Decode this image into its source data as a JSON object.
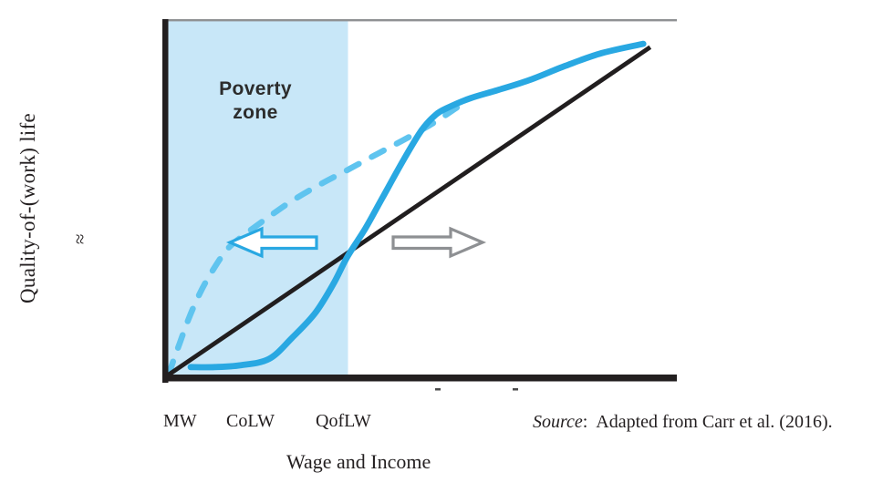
{
  "chart_data": {
    "type": "line",
    "title": "",
    "xlabel": "Wage and Income",
    "ylabel": "Quality-of-(work) life",
    "x_tick_labels": [
      "MW",
      "CoLW",
      "QofLW"
    ],
    "xlim": [
      0,
      100
    ],
    "ylim": [
      0,
      100
    ],
    "grid": false,
    "legend": "none",
    "annotations": {
      "poverty_zone_line1": "Poverty",
      "poverty_zone_line2": "zone",
      "y_axis_break": "≈"
    },
    "poverty_zone_x_range": [
      0,
      35.4
    ],
    "series": [
      {
        "name": "quality-of-work-life S-curve (solid blue)",
        "style": "solid",
        "points": [
          [
            4.4,
            2.1
          ],
          [
            9.1,
            2.1
          ],
          [
            14.1,
            2.6
          ],
          [
            19.8,
            4.4
          ],
          [
            24.3,
            10.3
          ],
          [
            28.8,
            17.2
          ],
          [
            32.4,
            25.4
          ],
          [
            35.2,
            33.2
          ],
          [
            38.7,
            41.1
          ],
          [
            42.2,
            50.1
          ],
          [
            46.4,
            60.9
          ],
          [
            49.8,
            68.9
          ],
          [
            52.6,
            73.3
          ],
          [
            55.0,
            75.3
          ],
          [
            59.3,
            77.9
          ],
          [
            64.7,
            80.2
          ],
          [
            70.9,
            83.0
          ],
          [
            78.1,
            87.1
          ],
          [
            85.3,
            90.7
          ],
          [
            93.4,
            93.3
          ]
        ]
      },
      {
        "name": "diminishing-returns curve (dashed light blue)",
        "style": "dashed",
        "points": [
          [
            0.1,
            0
          ],
          [
            1.0,
            3.9
          ],
          [
            2.2,
            8.7
          ],
          [
            4.0,
            15.7
          ],
          [
            6.2,
            22.9
          ],
          [
            8.7,
            29.3
          ],
          [
            11.7,
            35.5
          ],
          [
            15.3,
            39.8
          ],
          [
            19.3,
            44.0
          ],
          [
            23.9,
            48.6
          ],
          [
            29.3,
            53.2
          ],
          [
            34.7,
            57.3
          ],
          [
            40.4,
            61.7
          ],
          [
            45.8,
            65.8
          ],
          [
            50.3,
            69.4
          ],
          [
            53.5,
            72.2
          ],
          [
            56.0,
            74.6
          ],
          [
            57.8,
            76.3
          ]
        ]
      },
      {
        "name": "linear reference line (black)",
        "style": "solid",
        "points": [
          [
            0.1,
            0
          ],
          [
            94.4,
            92.0
          ]
        ]
      }
    ]
  },
  "caption": {
    "source_label": "Source",
    "source_text": ":  Adapted from Carr et al. (2016)."
  },
  "colors": {
    "solid_curve": "#29a8e2",
    "dashed_curve": "#5fc4ef",
    "poverty_zone": "#c8e7f8",
    "reference_line": "#211e1f",
    "axis": "#231f20",
    "top_border": "#8f9193",
    "arrow_gray": "#8e9093",
    "arrow_fill": "#ffffff",
    "artifact_mark": "#4a4a4a"
  }
}
